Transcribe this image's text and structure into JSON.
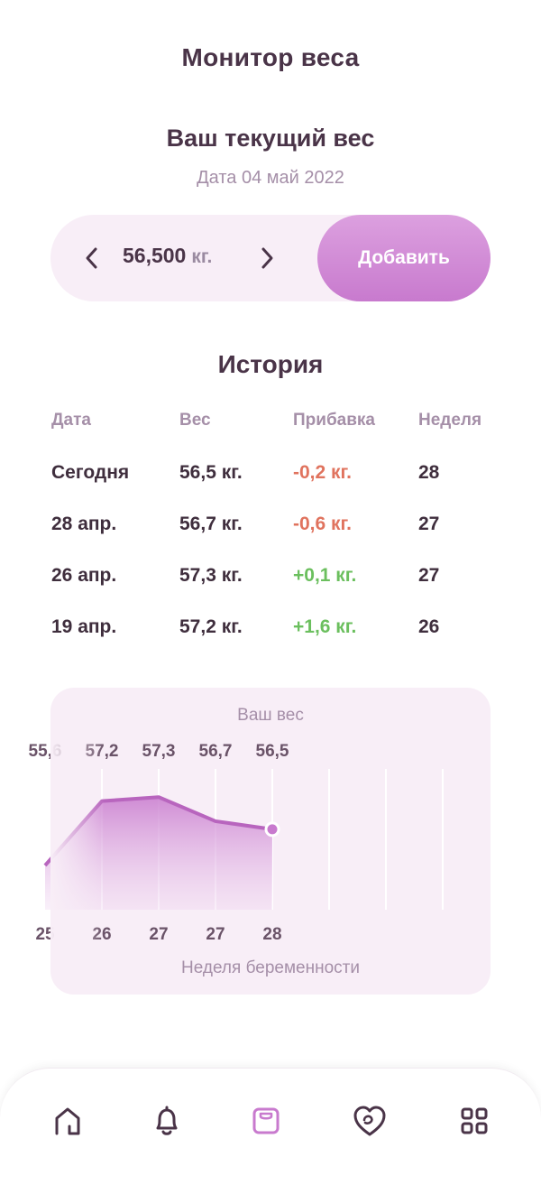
{
  "header": {
    "title": "Монитор веса"
  },
  "current": {
    "title": "Ваш текущий вес",
    "date": "Дата 04 май 2022",
    "value": "56,500",
    "unit": "кг.",
    "add_label": "Добавить"
  },
  "history": {
    "title": "История",
    "columns": [
      "Дата",
      "Вес",
      "Прибавка",
      "Неделя"
    ],
    "rows": [
      {
        "date": "Сегодня",
        "weight": "56,5 кг.",
        "gain": "-0,2 кг.",
        "week": "28"
      },
      {
        "date": "28 апр.",
        "weight": "56,7 кг.",
        "gain": "-0,6 кг.",
        "week": "27"
      },
      {
        "date": "26 апр.",
        "weight": "57,3 кг.",
        "gain": "+0,1 кг.",
        "week": "27"
      },
      {
        "date": "19 апр.",
        "weight": "57,2 кг.",
        "gain": "+1,6 кг.",
        "week": "26"
      }
    ]
  },
  "colors": {
    "accent": "#c87ace",
    "negative": "#e0735e",
    "positive": "#6bbf5e",
    "text": "#4a3448",
    "muted": "#a58fa8"
  },
  "chart_data": {
    "type": "area",
    "title": "Ваш вес",
    "xlabel": "Неделя беременности",
    "ylabel": "",
    "x": [
      "25",
      "26",
      "27",
      "27",
      "28"
    ],
    "values": [
      55.6,
      57.2,
      57.3,
      56.7,
      56.5
    ],
    "value_labels": [
      "55,6",
      "57,2",
      "57,3",
      "56,7",
      "56,5"
    ],
    "grid": true,
    "ylim": [
      54.5,
      58.0
    ]
  },
  "nav": {
    "items": [
      {
        "icon": "home-icon",
        "active": false
      },
      {
        "icon": "bell-icon",
        "active": false
      },
      {
        "icon": "scale-icon",
        "active": true
      },
      {
        "icon": "heart-icon",
        "active": false
      },
      {
        "icon": "grid-icon",
        "active": false
      }
    ]
  }
}
